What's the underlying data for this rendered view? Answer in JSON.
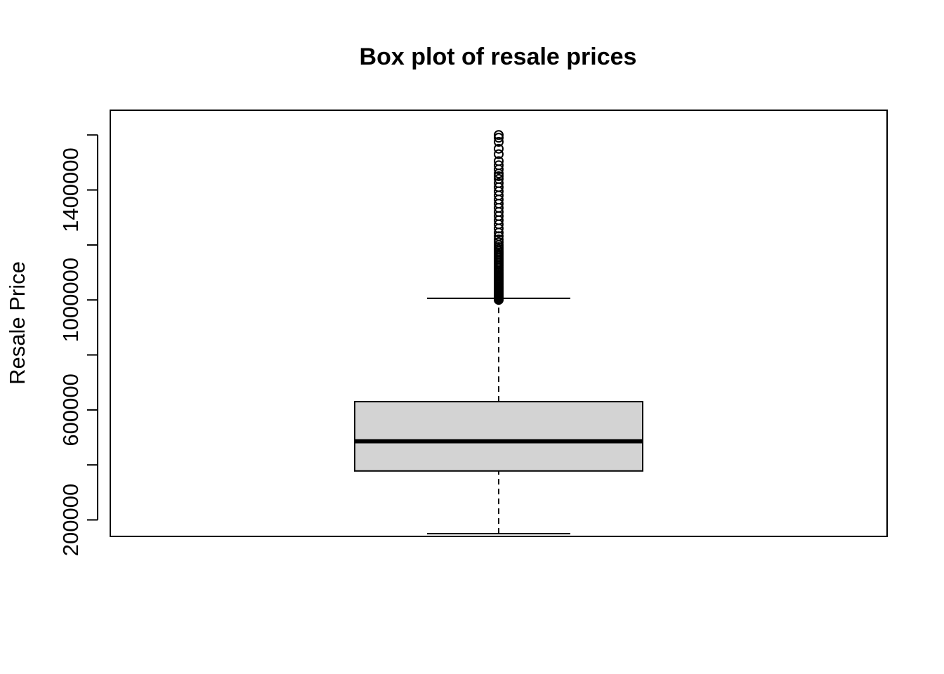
{
  "chart_data": {
    "type": "boxplot",
    "title": "Box plot of resale prices",
    "xlabel": "",
    "ylabel": "Resale Price",
    "ylim": [
      140000,
      1690000
    ],
    "yticks": [
      200000,
      400000,
      600000,
      800000,
      1000000,
      1200000,
      1400000,
      1600000
    ],
    "ytick_labels": [
      "200000",
      "",
      "600000",
      "",
      "1000000",
      "",
      "1400000",
      ""
    ],
    "box": {
      "whisker_low": 150000,
      "q1": 378000,
      "median": 486000,
      "q3": 630000,
      "whisker_high": 1006000
    },
    "outliers": [
      1000000,
      1002000,
      1004000,
      1006000,
      1008000,
      1010000,
      1013000,
      1016000,
      1019000,
      1022000,
      1026000,
      1030000,
      1034000,
      1038000,
      1042000,
      1046000,
      1050000,
      1055000,
      1060000,
      1065000,
      1070000,
      1075000,
      1080000,
      1085000,
      1090000,
      1095000,
      1100000,
      1106000,
      1112000,
      1118000,
      1124000,
      1130000,
      1136000,
      1142000,
      1148000,
      1154000,
      1160000,
      1166000,
      1172000,
      1178000,
      1185000,
      1192000,
      1200000,
      1210000,
      1220000,
      1232000,
      1245000,
      1260000,
      1275000,
      1290000,
      1305000,
      1320000,
      1335000,
      1350000,
      1365000,
      1380000,
      1395000,
      1410000,
      1425000,
      1440000,
      1450000,
      1460000,
      1475000,
      1490000,
      1505000,
      1530000,
      1550000,
      1575000,
      1590000,
      1600000
    ],
    "box_fill": "#d3d3d3",
    "line_color": "#000000",
    "grid": false
  }
}
